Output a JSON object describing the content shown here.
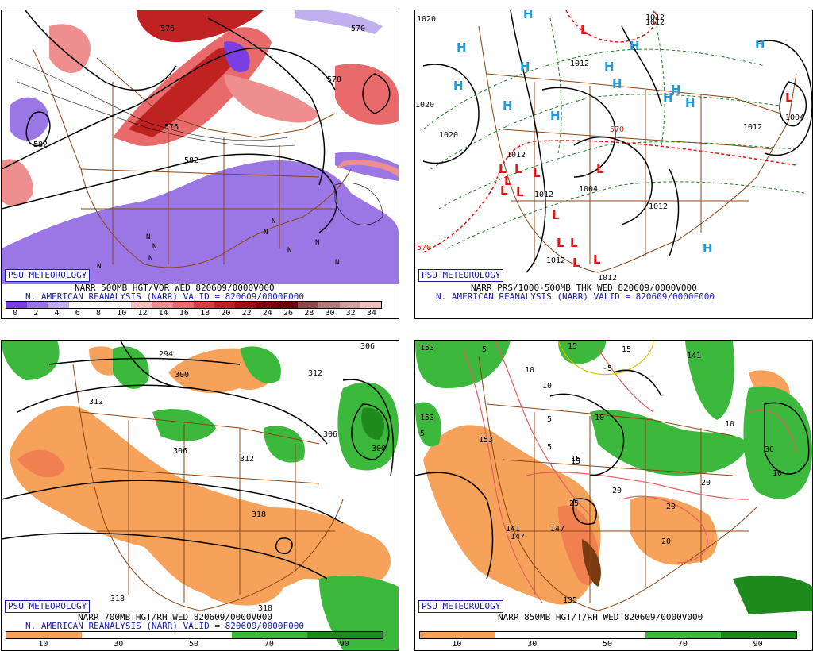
{
  "brand": "PSU METEOROLOGY",
  "panels": [
    {
      "id": "vor500",
      "caption_top": "NARR 500MB HGT/VOR WED 820609/0000V000",
      "caption_bottom": "N. AMERICAN REANALYSIS (NARR) VALID = 820609/0000F000",
      "colorbar_labels": [
        "0",
        "2",
        "4",
        "6",
        "8",
        "10",
        "12",
        "14",
        "16",
        "18",
        "20",
        "22",
        "24",
        "26",
        "28",
        "30",
        "32",
        "34"
      ],
      "colorbar_colors": [
        "#7b3ee0",
        "#9b77e6",
        "#c0b0ef",
        "#ffffff",
        "#ffffff",
        "#ffffff",
        "#f6c0c0",
        "#ef8e8e",
        "#e86a6a",
        "#d94040",
        "#c02222",
        "#a01010",
        "#800606",
        "#6a0000",
        "#8a4a4a",
        "#b07a7a",
        "#d0a0a0",
        "#f0c0c0"
      ],
      "contour_labels": [
        "576",
        "570",
        "582",
        "570",
        "582",
        "576"
      ]
    },
    {
      "id": "prs",
      "caption_top": "NARR PRS/1000-500MB THK WED 820609/0000V000",
      "caption_bottom": "N. AMERICAN REANALYSIS (NARR) VALID = 820609/0000F000",
      "contour_labels": [
        "1020",
        "1012",
        "1012",
        "1020",
        "1020",
        "1012",
        "1012",
        "1004",
        "1012",
        "1012",
        "1004",
        "570",
        "570",
        "1012",
        "1012",
        "1012"
      ],
      "high_symbol": "H",
      "low_symbol": "L"
    },
    {
      "id": "rh700",
      "caption_top": "NARR 700MB HGT/RH WED 820609/0000V000",
      "caption_bottom": "N. AMERICAN REANALYSIS (NARR) VALID = 820609/0000F000",
      "colorbar_labels": [
        "10",
        "30",
        "50",
        "70",
        "90"
      ],
      "colorbar_colors": [
        "#f6a25a",
        "#ffffff",
        "#ffffff",
        "#3cb83c",
        "#1e8a1e"
      ],
      "contour_labels": [
        "294",
        "300",
        "312",
        "312",
        "306",
        "306",
        "312",
        "306",
        "300",
        "318",
        "318",
        "318"
      ]
    },
    {
      "id": "t850",
      "caption_top": "NARR 850MB HGT/T/RH WED 820609/0000V000",
      "colorbar_labels": [
        "10",
        "30",
        "50",
        "70",
        "90"
      ],
      "colorbar_colors": [
        "#f6a25a",
        "#ffffff",
        "#ffffff",
        "#3cb83c",
        "#1e8a1e"
      ],
      "contour_labels": [
        "153",
        "5",
        "10",
        "15",
        "10",
        "-5",
        "15",
        "153",
        "5",
        "5",
        "10",
        "15",
        "153",
        "5",
        "15",
        "25",
        "20",
        "20",
        "20",
        "141",
        "10",
        "147",
        "10",
        "20",
        "135",
        "30",
        "141",
        "147"
      ]
    }
  ]
}
